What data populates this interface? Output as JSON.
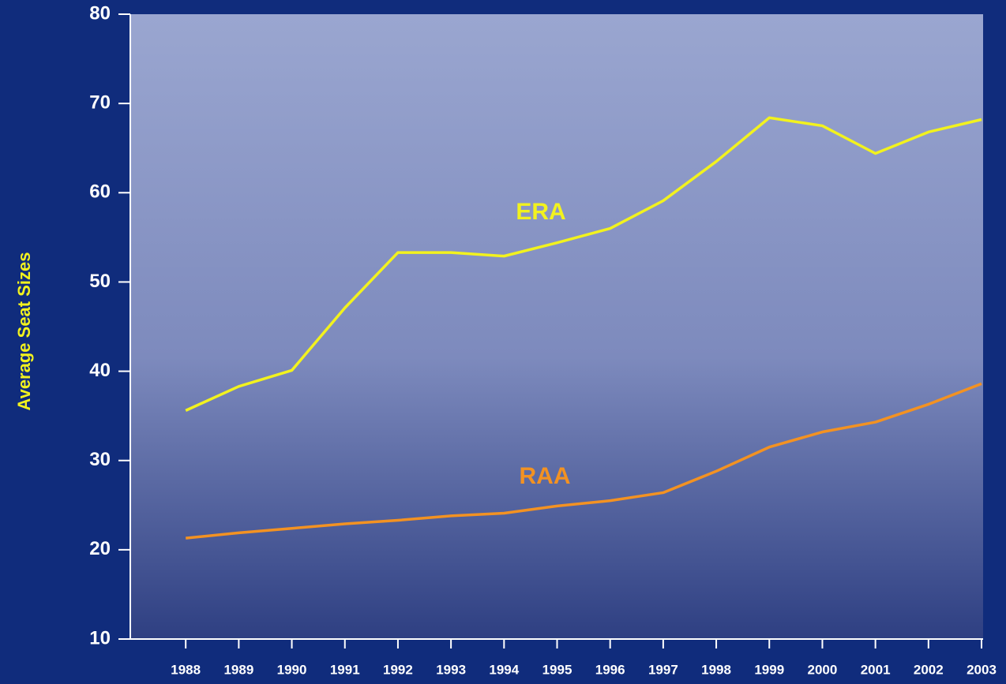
{
  "chart_data": {
    "type": "line",
    "y_label": "Average Seat Sizes",
    "x": [
      1988,
      1989,
      1990,
      1991,
      1992,
      1993,
      1994,
      1995,
      1996,
      1997,
      1998,
      1999,
      2000,
      2001,
      2002,
      2003
    ],
    "series": [
      {
        "name": "ERA",
        "color": "#f2f21e",
        "values": [
          35.6,
          38.3,
          40.1,
          47.1,
          53.3,
          53.3,
          52.9,
          54.4,
          56.0,
          59.1,
          63.5,
          68.4,
          67.5,
          64.4,
          66.8,
          68.2
        ]
      },
      {
        "name": "RAA",
        "color": "#f39222",
        "values": [
          21.3,
          21.9,
          22.4,
          22.9,
          23.3,
          23.8,
          24.1,
          24.9,
          25.5,
          26.4,
          28.8,
          31.5,
          33.2,
          34.3,
          36.3,
          38.6
        ]
      }
    ],
    "xlim": [
      1987,
      2003
    ],
    "xticks": [
      1988,
      1989,
      1990,
      1991,
      1992,
      1993,
      1994,
      1995,
      1996,
      1997,
      1998,
      1999,
      2000,
      2001,
      2002,
      2003
    ],
    "ylim": [
      10,
      80
    ],
    "yticks": [
      10,
      20,
      30,
      40,
      50,
      60,
      70,
      80
    ]
  }
}
